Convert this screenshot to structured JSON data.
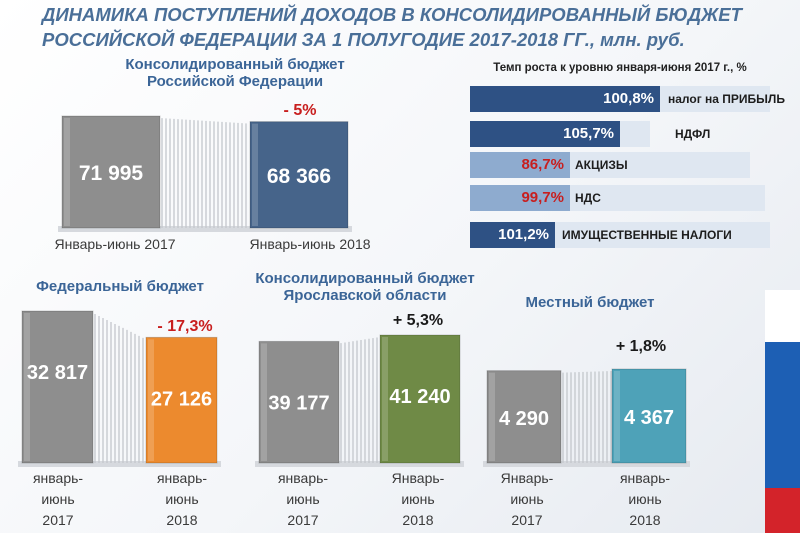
{
  "title": {
    "line1": "ДИНАМИКА ПОСТУПЛЕНИЙ ДОХОДОВ В КОНСОЛИДИРОВАННЫЙ БЮДЖЕТ",
    "line2": "РОССИЙСКОЙ ФЕДЕРАЦИИ ЗА 1 ПОЛУГОДИЕ 2017-2018 ГГ., млн. руб."
  },
  "chart_data": [
    {
      "type": "bar",
      "id": "consolidated_rf",
      "title": "Консолидированный бюджет Российской Федерации",
      "title_lines": [
        "Консолидированный бюджет",
        "Российской Федерации"
      ],
      "categories": [
        "Январь-июнь 2017",
        "Январь-июнь 2018"
      ],
      "values": [
        71995,
        68366
      ],
      "value_labels": [
        "71 995",
        "68 366"
      ],
      "change_label": "- 5%",
      "colors": [
        "#8e8e8e",
        "#46648a"
      ]
    },
    {
      "type": "bar",
      "id": "federal",
      "title": "Федеральный бюджет",
      "title_lines": [
        "Федеральный  бюджет"
      ],
      "categories": [
        "январь-июнь 2017",
        "январь-июнь 2018"
      ],
      "cat_lines": [
        [
          "январь-",
          "июнь",
          "2017"
        ],
        [
          "январь-",
          "июнь",
          "2018"
        ]
      ],
      "values": [
        32817,
        27126
      ],
      "value_labels": [
        "32 817",
        "27 126"
      ],
      "change_label": "- 17,3%",
      "colors": [
        "#8e8e8e",
        "#ec8a2e"
      ]
    },
    {
      "type": "bar",
      "id": "yaroslavl",
      "title": "Консолидированный бюджет Ярославской области",
      "title_lines": [
        "Консолидированный бюджет",
        "Ярославской области"
      ],
      "categories": [
        "январь-июнь 2017",
        "Январь-июнь 2018"
      ],
      "cat_lines": [
        [
          "январь-",
          "июнь",
          "2017"
        ],
        [
          "Январь-",
          "июнь",
          "2018"
        ]
      ],
      "values": [
        39177,
        41240
      ],
      "value_labels": [
        "39 177",
        "41 240"
      ],
      "change_label": "+ 5,3%",
      "colors": [
        "#8e8e8e",
        "#6f8a46"
      ]
    },
    {
      "type": "bar",
      "id": "local",
      "title": "Местный бюджет",
      "title_lines": [
        "Местный бюджет"
      ],
      "categories": [
        "Январь-июнь 2017",
        "январь-июнь 2018"
      ],
      "cat_lines": [
        [
          "Январь-",
          "июнь",
          "2017"
        ],
        [
          "январь-",
          "июнь",
          "2018"
        ]
      ],
      "values": [
        4290,
        4367
      ],
      "value_labels": [
        "4 290",
        "4 367"
      ],
      "change_label": "+ 1,8%",
      "colors": [
        "#8e8e8e",
        "#4ea2b8"
      ]
    },
    {
      "type": "bar",
      "id": "growth_rates",
      "orientation": "horizontal",
      "title": "Темп роста к уровню января-июня 2017 г., %",
      "categories": [
        "налог на ПРИБЫЛЬ",
        "НДФЛ",
        "АКЦИЗЫ",
        "НДС",
        "ИМУЩЕСТВЕННЫЕ НАЛОГИ"
      ],
      "values": [
        100.8,
        105.7,
        86.7,
        99.7,
        101.2
      ],
      "value_labels": [
        "100,8%",
        "105,7%",
        "86,7%",
        "99,7%",
        "101,2%"
      ],
      "xlim": [
        0,
        120
      ]
    }
  ],
  "colors": {
    "title": "#4a6f98",
    "caption": "#3b6597",
    "negative": "#c81e1e",
    "rate_bar": "#2e5184",
    "rate_bar_light": "#8eabcf",
    "rate_track": "#dfe7f1",
    "flag_white": "#ffffff",
    "flag_blue": "#1d5fb4",
    "flag_red": "#d3232a"
  }
}
